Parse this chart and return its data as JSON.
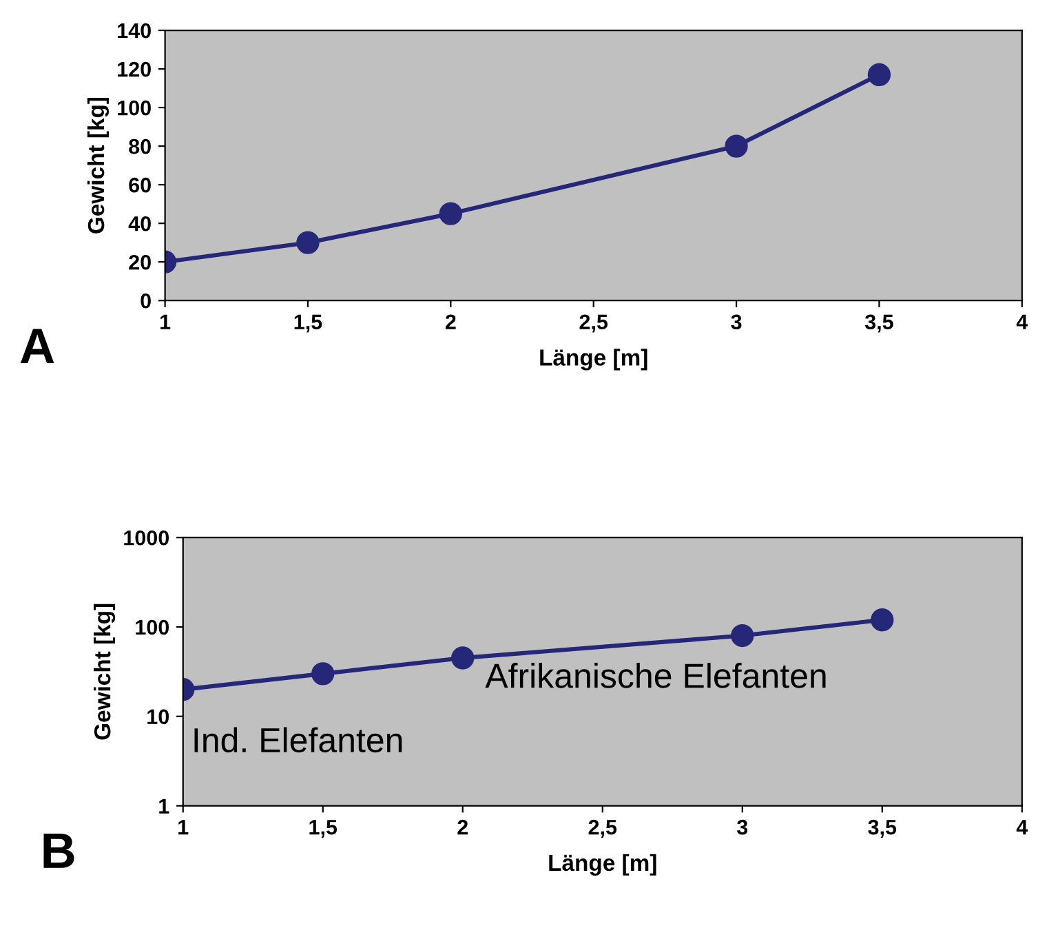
{
  "chart_data": [
    {
      "type": "line",
      "title": "A",
      "xlabel": "Länge [m]",
      "ylabel": "Gewicht [kg]",
      "x": [
        1,
        1.5,
        2,
        3,
        3.5
      ],
      "series": [
        {
          "color": "#27277a",
          "values": [
            20,
            30,
            45,
            80,
            117
          ]
        }
      ],
      "xlim": [
        1,
        4
      ],
      "xticks": [
        1,
        {
          "value": 1.5,
          "label": "1,5"
        },
        2,
        {
          "value": 2.5,
          "label": "2,5"
        },
        3,
        {
          "value": 3.5,
          "label": "3,5"
        },
        4
      ],
      "ylim": [
        0,
        140
      ],
      "yticks": [
        0,
        20,
        40,
        60,
        80,
        100,
        120,
        140
      ],
      "marker": "circle",
      "grid": false,
      "legend": false
    },
    {
      "type": "line",
      "title": "B",
      "xlabel": "Länge [m]",
      "ylabel": "Gewicht [kg]",
      "x": [
        1,
        1.5,
        2,
        3,
        3.5
      ],
      "series": [
        {
          "color": "#27277a",
          "values": [
            20,
            30,
            45,
            80,
            120
          ]
        }
      ],
      "xlim": [
        1,
        4
      ],
      "xticks": [
        1,
        {
          "value": 1.5,
          "label": "1,5"
        },
        2,
        {
          "value": 2.5,
          "label": "2,5"
        },
        3,
        {
          "value": 3.5,
          "label": "3,5"
        },
        4
      ],
      "ylim": [
        1,
        1000
      ],
      "yticks": [
        1,
        10,
        100,
        1000
      ],
      "log": "y",
      "annotations": [
        "Ind. Elefanten",
        "Afrikanische Elefanten"
      ],
      "marker": "circle",
      "grid": false,
      "legend": false
    }
  ]
}
